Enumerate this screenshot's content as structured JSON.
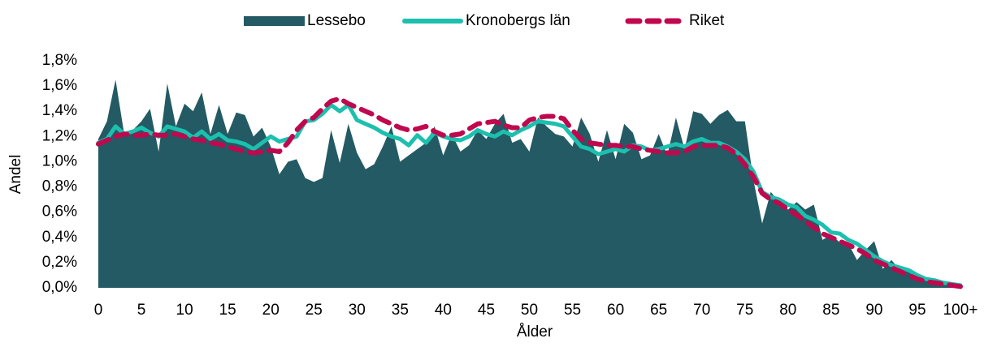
{
  "chart_data": {
    "type": "area",
    "x_label": "Ålder",
    "y_label": "Andel",
    "categories": [
      "0",
      null,
      null,
      null,
      null,
      "5",
      null,
      null,
      null,
      null,
      "10",
      null,
      null,
      null,
      null,
      "15",
      null,
      null,
      null,
      null,
      "20",
      null,
      null,
      null,
      null,
      "25",
      null,
      null,
      null,
      null,
      "30",
      null,
      null,
      null,
      null,
      "35",
      null,
      null,
      null,
      null,
      "40",
      null,
      null,
      null,
      null,
      "45",
      null,
      null,
      null,
      null,
      "50",
      null,
      null,
      null,
      null,
      "55",
      null,
      null,
      null,
      null,
      "60",
      null,
      null,
      null,
      null,
      "65",
      null,
      null,
      null,
      null,
      "70",
      null,
      null,
      null,
      null,
      "75",
      null,
      null,
      null,
      null,
      "80",
      null,
      null,
      null,
      null,
      "85",
      null,
      null,
      null,
      null,
      "90",
      null,
      null,
      null,
      null,
      "95",
      null,
      null,
      null,
      null,
      "100+"
    ],
    "ylim": [
      0,
      1.8
    ],
    "yticks": [
      {
        "value": 0,
        "label": "0,0%"
      },
      {
        "value": 0.2,
        "label": "0,2%"
      },
      {
        "value": 0.4,
        "label": "0,4%"
      },
      {
        "value": 0.6,
        "label": "0,6%"
      },
      {
        "value": 0.8,
        "label": "0,8%"
      },
      {
        "value": 1.0,
        "label": "1,0%"
      },
      {
        "value": 1.2,
        "label": "1,2%"
      },
      {
        "value": 1.4,
        "label": "1,4%"
      },
      {
        "value": 1.6,
        "label": "1,6%"
      },
      {
        "value": 1.8,
        "label": "1,8%"
      }
    ],
    "legend": "top",
    "series": [
      {
        "name": "Lessebo",
        "type": "area",
        "color": "#235a63",
        "values": [
          1.18,
          1.32,
          1.65,
          1.22,
          1.25,
          1.32,
          1.42,
          1.08,
          1.62,
          1.28,
          1.46,
          1.4,
          1.55,
          1.22,
          1.45,
          1.22,
          1.39,
          1.37,
          1.2,
          1.27,
          1.12,
          0.9,
          1.0,
          1.02,
          0.87,
          0.84,
          0.87,
          1.25,
          0.99,
          1.3,
          1.07,
          0.94,
          0.98,
          1.12,
          1.28,
          1.0,
          1.05,
          1.1,
          1.15,
          1.28,
          1.05,
          1.22,
          1.08,
          1.13,
          1.25,
          1.18,
          1.3,
          1.38,
          1.15,
          1.18,
          1.08,
          1.35,
          1.28,
          1.22,
          1.2,
          1.12,
          1.35,
          1.22,
          1.0,
          1.25,
          1.02,
          1.3,
          1.23,
          1.02,
          1.05,
          1.22,
          1.05,
          1.35,
          1.1,
          1.4,
          1.38,
          1.3,
          1.37,
          1.41,
          1.32,
          1.32,
          0.85,
          0.51,
          0.76,
          0.68,
          0.62,
          0.68,
          0.62,
          0.66,
          0.38,
          0.42,
          0.36,
          0.35,
          0.22,
          0.3,
          0.37,
          0.15,
          0.22,
          0.14,
          0.15,
          0.1,
          0.07,
          0.05,
          0.04,
          0.02,
          0.02
        ]
      },
      {
        "name": "Kronobergs län",
        "type": "line",
        "color": "#1dbfae",
        "values": [
          1.15,
          1.18,
          1.28,
          1.22,
          1.24,
          1.27,
          1.23,
          1.2,
          1.28,
          1.26,
          1.24,
          1.19,
          1.24,
          1.18,
          1.22,
          1.17,
          1.16,
          1.14,
          1.1,
          1.15,
          1.2,
          1.16,
          1.18,
          1.2,
          1.32,
          1.33,
          1.38,
          1.45,
          1.4,
          1.45,
          1.33,
          1.3,
          1.27,
          1.23,
          1.2,
          1.18,
          1.13,
          1.21,
          1.15,
          1.23,
          1.2,
          1.18,
          1.17,
          1.2,
          1.25,
          1.22,
          1.2,
          1.24,
          1.21,
          1.25,
          1.28,
          1.32,
          1.31,
          1.3,
          1.28,
          1.2,
          1.12,
          1.1,
          1.06,
          1.08,
          1.1,
          1.08,
          1.13,
          1.12,
          1.09,
          1.1,
          1.12,
          1.14,
          1.12,
          1.16,
          1.18,
          1.15,
          1.15,
          1.12,
          1.08,
          1.02,
          0.92,
          0.76,
          0.72,
          0.7,
          0.66,
          0.64,
          0.57,
          0.54,
          0.5,
          0.44,
          0.43,
          0.38,
          0.35,
          0.3,
          0.25,
          0.21,
          0.18,
          0.16,
          0.14,
          0.1,
          0.07,
          0.06,
          0.04,
          0.03,
          0.02
        ]
      },
      {
        "name": "Riket",
        "type": "line",
        "dashed": true,
        "color": "#c0084e",
        "values": [
          1.14,
          1.17,
          1.2,
          1.22,
          1.21,
          1.21,
          1.22,
          1.21,
          1.21,
          1.22,
          1.2,
          1.18,
          1.17,
          1.15,
          1.14,
          1.12,
          1.1,
          1.08,
          1.07,
          1.08,
          1.09,
          1.08,
          1.15,
          1.25,
          1.32,
          1.35,
          1.42,
          1.48,
          1.5,
          1.46,
          1.43,
          1.4,
          1.37,
          1.33,
          1.3,
          1.27,
          1.25,
          1.26,
          1.28,
          1.24,
          1.21,
          1.21,
          1.22,
          1.26,
          1.3,
          1.31,
          1.32,
          1.29,
          1.27,
          1.27,
          1.33,
          1.35,
          1.36,
          1.36,
          1.34,
          1.25,
          1.18,
          1.15,
          1.14,
          1.13,
          1.13,
          1.12,
          1.12,
          1.1,
          1.09,
          1.08,
          1.07,
          1.07,
          1.08,
          1.12,
          1.13,
          1.13,
          1.13,
          1.11,
          1.06,
          0.98,
          0.88,
          0.75,
          0.7,
          0.67,
          0.62,
          0.58,
          0.53,
          0.48,
          0.43,
          0.4,
          0.37,
          0.34,
          0.31,
          0.27,
          0.22,
          0.19,
          0.16,
          0.13,
          0.1,
          0.07,
          0.05,
          0.04,
          0.03,
          0.02,
          0.01
        ]
      }
    ]
  }
}
